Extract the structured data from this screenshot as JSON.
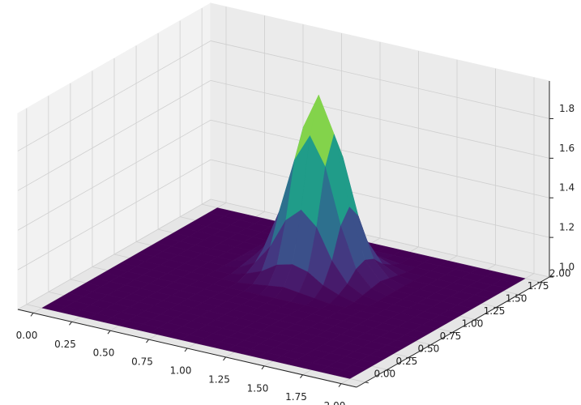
{
  "chart_data": {
    "type": "surface",
    "colormap": "viridis",
    "grid": true,
    "x": [
      0,
      0.1,
      0.2,
      0.3,
      0.4,
      0.5,
      0.6,
      0.7,
      0.8,
      0.9,
      1.0,
      1.1,
      1.2,
      1.3,
      1.4,
      1.5,
      1.6,
      1.7,
      1.8,
      1.9,
      2.0
    ],
    "y": [
      0,
      0.1,
      0.2,
      0.3,
      0.4,
      0.5,
      0.6,
      0.7,
      0.8,
      0.9,
      1.0,
      1.1,
      1.2,
      1.3,
      1.4,
      1.5,
      1.6,
      1.7,
      1.8,
      1.9,
      2.0
    ],
    "z": [
      [
        1,
        1,
        1,
        1,
        1,
        1,
        1,
        1,
        1,
        1,
        1,
        1,
        1,
        1,
        1,
        1,
        1,
        1,
        1,
        1,
        1
      ],
      [
        1,
        1,
        1,
        1,
        1,
        1,
        1,
        1,
        1,
        1,
        1,
        1,
        1,
        1,
        1,
        1,
        1,
        1,
        1,
        1,
        1
      ],
      [
        1,
        1,
        1,
        1,
        1,
        1,
        1,
        1,
        1,
        1,
        1,
        1,
        1,
        1,
        1,
        1,
        1,
        1,
        1,
        1,
        1
      ],
      [
        1,
        1,
        1,
        1,
        1,
        1,
        1,
        1,
        1,
        1,
        1,
        1,
        1,
        1,
        1,
        1,
        1,
        1,
        1,
        1,
        1
      ],
      [
        1,
        1,
        1,
        1,
        1,
        1,
        1,
        1,
        1,
        1,
        1,
        1,
        1,
        1,
        1,
        1,
        1,
        1,
        1,
        1,
        1
      ],
      [
        1,
        1,
        1,
        1,
        1,
        1,
        1,
        1,
        1,
        1,
        1,
        1,
        1,
        1,
        1,
        1,
        1,
        1,
        1,
        1,
        1
      ],
      [
        1,
        1,
        1,
        1,
        1,
        1,
        1,
        1,
        1,
        1,
        1,
        1,
        1,
        1,
        1,
        1,
        1,
        1,
        1,
        1,
        1
      ],
      [
        1,
        1,
        1,
        1,
        1,
        1,
        1,
        1,
        1,
        1,
        1,
        1,
        1,
        1,
        1,
        1,
        1,
        1,
        1,
        1,
        1
      ],
      [
        1,
        1,
        1,
        1,
        1,
        1,
        1,
        1,
        1,
        1,
        1,
        1,
        1,
        1,
        1,
        1,
        1,
        1,
        1,
        1,
        1
      ],
      [
        1,
        1,
        1,
        1,
        1,
        1,
        1,
        1,
        1,
        1,
        1,
        1,
        1,
        1,
        1,
        1,
        1,
        1,
        1,
        1,
        1
      ],
      [
        1,
        1,
        1,
        1,
        1,
        1,
        1,
        1,
        1.01,
        1.02,
        1.03,
        1.02,
        1.01,
        1,
        1,
        1,
        1,
        1,
        1,
        1,
        1
      ],
      [
        1,
        1,
        1,
        1,
        1,
        1,
        1,
        1.02,
        1.05,
        1.1,
        1.12,
        1.1,
        1.05,
        1.02,
        1,
        1,
        1,
        1,
        1,
        1,
        1
      ],
      [
        1,
        1,
        1,
        1,
        1,
        1,
        1.01,
        1.05,
        1.15,
        1.3,
        1.37,
        1.3,
        1.15,
        1.05,
        1.01,
        1,
        1,
        1,
        1,
        1,
        1
      ],
      [
        1,
        1,
        1,
        1,
        1,
        1,
        1.02,
        1.1,
        1.3,
        1.58,
        1.72,
        1.58,
        1.3,
        1.1,
        1.02,
        1,
        1,
        1,
        1,
        1,
        1
      ],
      [
        1,
        1,
        1,
        1,
        1,
        1,
        1.03,
        1.12,
        1.37,
        1.72,
        1.9,
        1.72,
        1.37,
        1.12,
        1.03,
        1,
        1,
        1,
        1,
        1,
        1
      ],
      [
        1,
        1,
        1,
        1,
        1,
        1,
        1.02,
        1.1,
        1.3,
        1.58,
        1.72,
        1.58,
        1.3,
        1.1,
        1.02,
        1,
        1,
        1,
        1,
        1,
        1
      ],
      [
        1,
        1,
        1,
        1,
        1,
        1,
        1.01,
        1.05,
        1.15,
        1.3,
        1.37,
        1.3,
        1.15,
        1.05,
        1.01,
        1,
        1,
        1,
        1,
        1,
        1
      ],
      [
        1,
        1,
        1,
        1,
        1,
        1,
        1,
        1.02,
        1.05,
        1.1,
        1.12,
        1.1,
        1.05,
        1.02,
        1,
        1,
        1,
        1,
        1,
        1,
        1
      ],
      [
        1,
        1,
        1,
        1,
        1,
        1,
        1,
        1,
        1.01,
        1.02,
        1.03,
        1.02,
        1.01,
        1,
        1,
        1,
        1,
        1,
        1,
        1,
        1
      ],
      [
        1,
        1,
        1,
        1,
        1,
        1,
        1,
        1,
        1,
        1,
        1,
        1,
        1,
        1,
        1,
        1,
        1,
        1,
        1,
        1,
        1
      ],
      [
        1,
        1,
        1,
        1,
        1,
        1,
        1,
        1,
        1,
        1,
        1,
        1,
        1,
        1,
        1,
        1,
        1,
        1,
        1,
        1,
        1
      ]
    ],
    "xlim": [
      -0.1,
      2.1
    ],
    "ylim": [
      -0.1,
      2.1
    ],
    "zlim": [
      1,
      1.99
    ],
    "xticks": [
      {
        "value": 0,
        "label": "0.00"
      },
      {
        "value": 0.25,
        "label": "0.25"
      },
      {
        "value": 0.5,
        "label": "0.50"
      },
      {
        "value": 0.75,
        "label": "0.75"
      },
      {
        "value": 1,
        "label": "1.00"
      },
      {
        "value": 1.25,
        "label": "1.25"
      },
      {
        "value": 1.5,
        "label": "1.50"
      },
      {
        "value": 1.75,
        "label": "1.75"
      },
      {
        "value": 2,
        "label": "2.00"
      }
    ],
    "yticks": [
      {
        "value": 0,
        "label": "0.00"
      },
      {
        "value": 0.25,
        "label": "0.25"
      },
      {
        "value": 0.5,
        "label": "0.50"
      },
      {
        "value": 0.75,
        "label": "0.75"
      },
      {
        "value": 1,
        "label": "1.00"
      },
      {
        "value": 1.25,
        "label": "1.25"
      },
      {
        "value": 1.5,
        "label": "1.50"
      },
      {
        "value": 1.75,
        "label": "1.75"
      },
      {
        "value": 2,
        "label": "2.00"
      }
    ],
    "zticks": [
      {
        "value": 1,
        "label": "1.0"
      },
      {
        "value": 1.2,
        "label": "1.2"
      },
      {
        "value": 1.4,
        "label": "1.4"
      },
      {
        "value": 1.6,
        "label": "1.6"
      },
      {
        "value": 1.8,
        "label": "1.8"
      }
    ]
  }
}
